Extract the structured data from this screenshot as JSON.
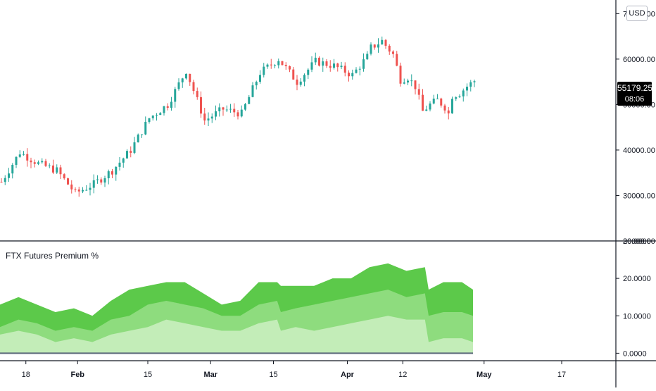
{
  "chart_data": [
    {
      "type": "candlestick",
      "title": "",
      "currency_label": "USD",
      "last_price": "55179.25",
      "countdown": "08:06",
      "ylim": [
        20000,
        73000
      ],
      "y_ticks": [
        "70000.00",
        "60000.00",
        "50000.00",
        "40000.00",
        "30000.00",
        "20000.00"
      ],
      "colors": {
        "up": "#26a69a",
        "down": "#ef5350"
      },
      "series": [
        {
          "name": "price",
          "x": [
            0,
            5,
            10,
            15,
            20,
            25,
            30,
            35,
            40,
            45,
            50,
            55,
            60,
            65,
            70,
            75,
            80,
            85,
            90,
            95,
            99
          ],
          "values": [
            33000,
            39500,
            37000,
            35500,
            30500,
            32500,
            35500,
            40000,
            47000,
            50000,
            57500,
            46500,
            49000,
            48000,
            57000,
            60000,
            55000,
            59500,
            58500,
            56500,
            60500
          ]
        },
        {
          "name": "price2",
          "x": [
            100,
            103,
            106,
            108,
            110,
            112,
            114,
            116,
            118,
            120,
            121,
            122,
            124,
            126,
            128
          ],
          "values": [
            62500,
            64000,
            61000,
            55500,
            56000,
            54000,
            48500,
            50000,
            51000,
            49500,
            48000,
            52000,
            52500,
            54000,
            55200
          ]
        }
      ]
    },
    {
      "type": "area",
      "title": "FTX Futures Premium %",
      "ylim": [
        -2,
        30
      ],
      "y_ticks": [
        "30.0000",
        "20.0000",
        "10.0000",
        "0.0000"
      ],
      "x": [
        0,
        5,
        10,
        15,
        20,
        25,
        30,
        35,
        40,
        45,
        50,
        55,
        60,
        65,
        70,
        75,
        76,
        80,
        85,
        90,
        95,
        100,
        105,
        110,
        115,
        116,
        120,
        125,
        128
      ],
      "series": [
        {
          "name": "upper",
          "color": "#5cc94a",
          "values": [
            13,
            15,
            13,
            11,
            12,
            10,
            14,
            17,
            18,
            19,
            19,
            16,
            13,
            14,
            19,
            19,
            18,
            18,
            18,
            20,
            20,
            23,
            24,
            22,
            23,
            17,
            19,
            19,
            17
          ]
        },
        {
          "name": "middle",
          "color": "#8edc7e",
          "values": [
            7,
            9,
            8,
            6,
            7,
            6,
            9,
            10,
            13,
            14,
            13,
            12,
            10,
            10,
            13,
            14,
            11,
            12,
            13,
            14,
            15,
            16,
            17,
            15,
            16,
            10,
            11,
            11,
            10
          ]
        },
        {
          "name": "lower",
          "color": "#c3edb8",
          "values": [
            5,
            6,
            5,
            3,
            4,
            3,
            5,
            6,
            7,
            9,
            8,
            7,
            6,
            6,
            8,
            9,
            6,
            7,
            6,
            7,
            8,
            9,
            10,
            9,
            9,
            3,
            4,
            4,
            3
          ]
        }
      ]
    }
  ],
  "x_axis": {
    "ticks": [
      {
        "label": "18",
        "x": 7
      },
      {
        "label": "Feb",
        "x": 21
      },
      {
        "label": "15",
        "x": 40
      },
      {
        "label": "Mar",
        "x": 57
      },
      {
        "label": "15",
        "x": 74
      },
      {
        "label": "Apr",
        "x": 94
      },
      {
        "label": "12",
        "x": 109
      },
      {
        "label": "May",
        "x": 131
      },
      {
        "label": "17",
        "x": 152
      }
    ]
  }
}
